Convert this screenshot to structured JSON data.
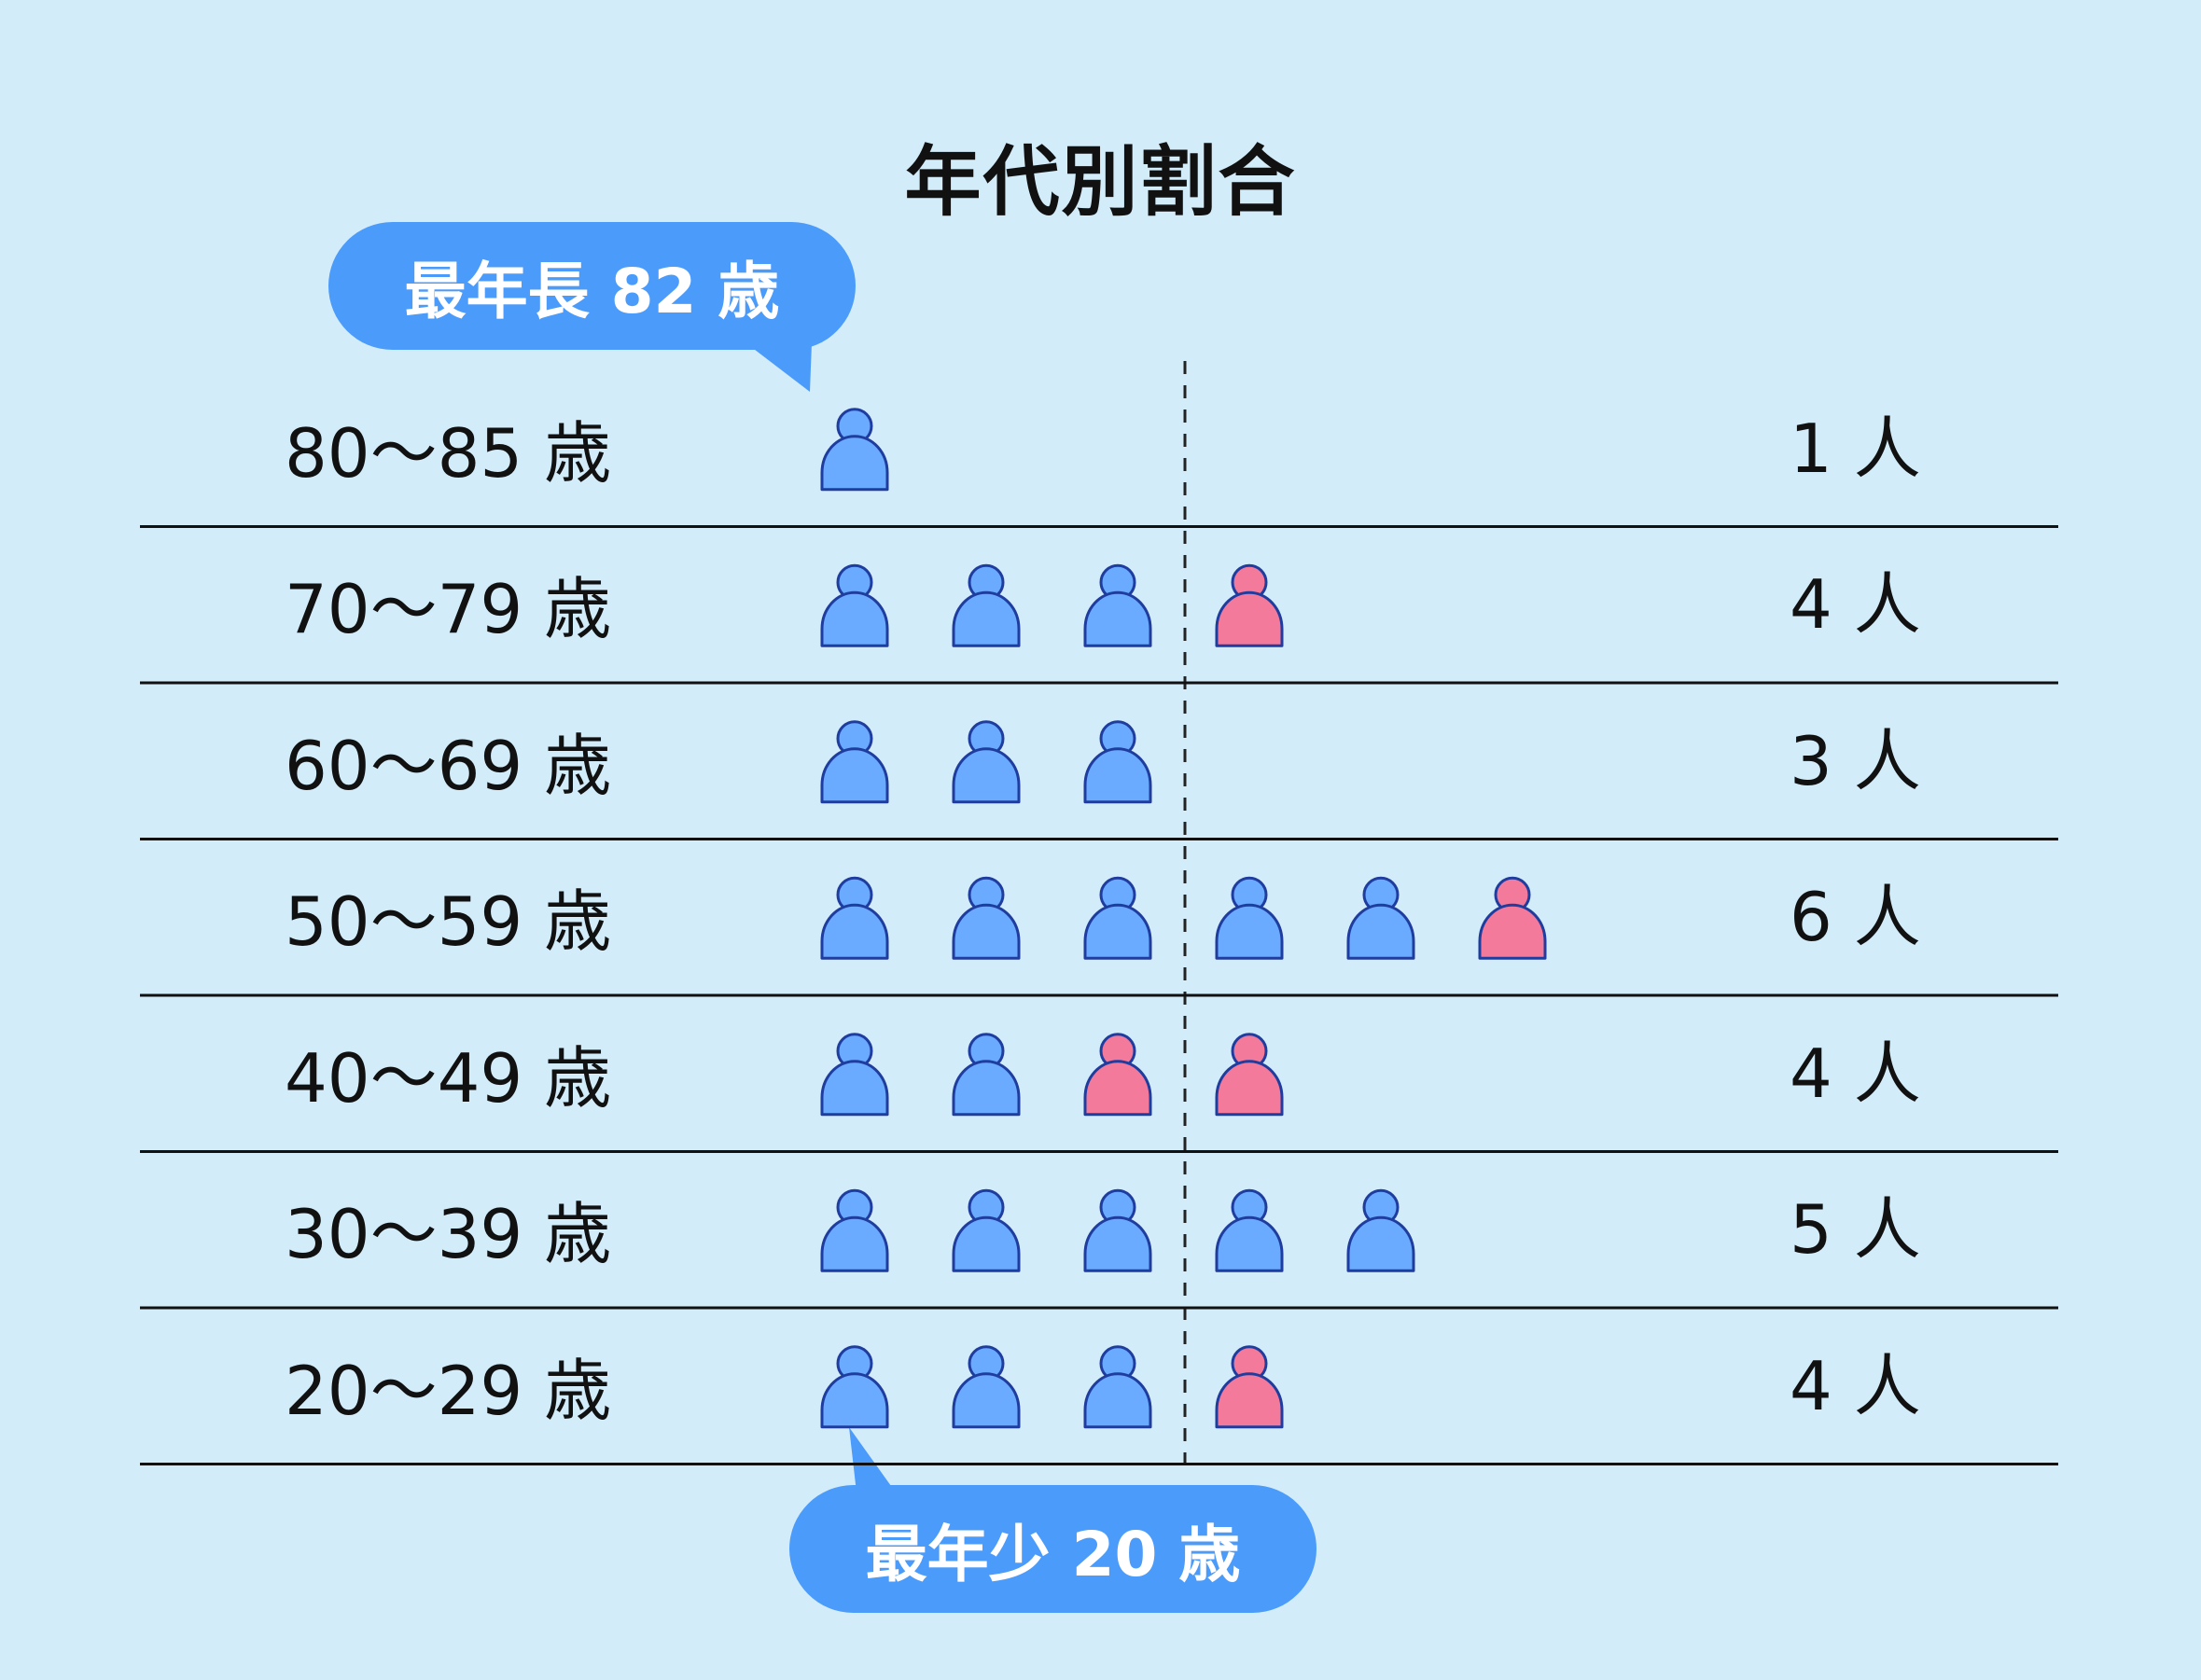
{
  "chart_data": {
    "type": "pictograph",
    "title": "年代別割合",
    "categories": [
      "80〜85 歳",
      "70〜79 歳",
      "60〜69 歳",
      "50〜59 歳",
      "40〜49 歳",
      "30〜39 歳",
      "20〜29 歳"
    ],
    "series": [
      {
        "color": "#6aabff",
        "values": [
          1,
          3,
          3,
          5,
          2,
          5,
          3
        ]
      },
      {
        "color": "#f47a9b",
        "values": [
          0,
          1,
          0,
          1,
          2,
          0,
          1
        ]
      }
    ],
    "totals": [
      "1 人",
      "4 人",
      "3 人",
      "6 人",
      "4 人",
      "5 人",
      "4 人"
    ],
    "rows": [
      {
        "icons": [
          "b"
        ]
      },
      {
        "icons": [
          "b",
          "b",
          "b",
          "p"
        ]
      },
      {
        "icons": [
          "b",
          "b",
          "b"
        ]
      },
      {
        "icons": [
          "b",
          "b",
          "b",
          "b",
          "b",
          "p"
        ]
      },
      {
        "icons": [
          "b",
          "b",
          "p",
          "p"
        ]
      },
      {
        "icons": [
          "b",
          "b",
          "b",
          "b",
          "b"
        ]
      },
      {
        "icons": [
          "b",
          "b",
          "b",
          "p"
        ]
      }
    ],
    "annotations": {
      "oldest": "最年長 82 歳",
      "youngest": "最年少 20 歳"
    },
    "colors": {
      "background": "#d3ecf9",
      "male_fill": "#6aabff",
      "female_fill": "#f47a9b",
      "icon_stroke": "#1f3d9e",
      "bubble": "#4b9bfb"
    }
  }
}
